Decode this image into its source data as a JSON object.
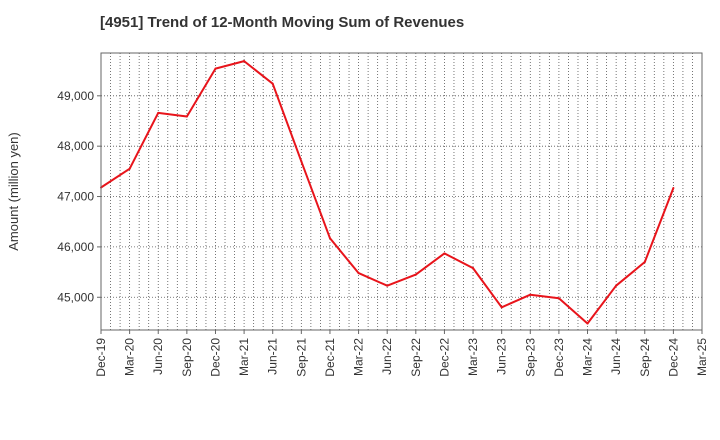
{
  "chart_data": {
    "type": "line",
    "title": "[4951]  Trend of 12-Month Moving Sum of Revenues",
    "ylabel": "Amount (million yen)",
    "xlabel": "",
    "ylim": [
      44350,
      49850
    ],
    "yticks": [
      45000,
      46000,
      47000,
      48000,
      49000
    ],
    "ytick_labels": [
      "45,000",
      "46,000",
      "47,000",
      "48,000",
      "49,000"
    ],
    "categories": [
      "Dec-19",
      "Mar-20",
      "Jun-20",
      "Sep-20",
      "Dec-20",
      "Mar-21",
      "Jun-21",
      "Sep-21",
      "Dec-21",
      "Mar-22",
      "Jun-22",
      "Sep-22",
      "Dec-22",
      "Mar-23",
      "Jun-23",
      "Sep-23",
      "Dec-23",
      "Mar-24",
      "Jun-24",
      "Sep-24",
      "Dec-24",
      "Mar-25"
    ],
    "series": [
      {
        "color": "#e8141b",
        "values": [
          47180,
          47550,
          48660,
          48590,
          49540,
          49690,
          49240,
          47700,
          46170,
          45480,
          45230,
          45450,
          45870,
          45580,
          44800,
          45050,
          44980,
          44480,
          45230,
          45700,
          47170,
          null
        ]
      }
    ],
    "grid": true
  }
}
